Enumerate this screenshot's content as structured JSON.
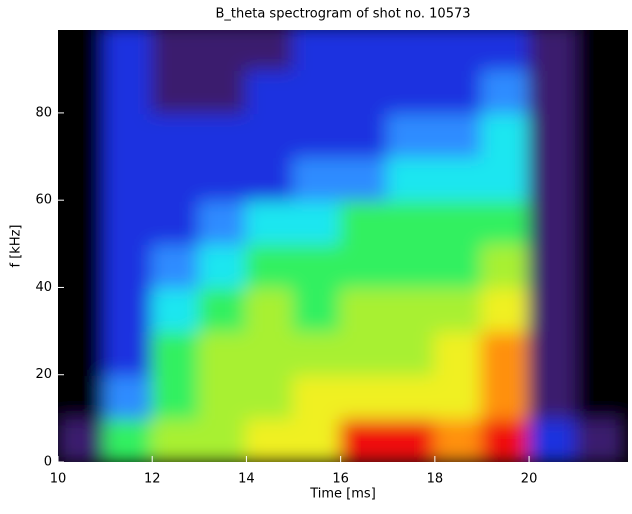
{
  "chart_data": {
    "type": "heatmap",
    "title": "B_theta spectrogram of shot no. 10573",
    "xlabel": "Time [ms]",
    "ylabel": "f [kHz]",
    "x": [
      10.5,
      11.5,
      12.5,
      13.5,
      14.5,
      15.5,
      16.5,
      17.5,
      18.5,
      19.5,
      20.5,
      21.5
    ],
    "y": [
      5,
      15,
      25,
      35,
      45,
      55,
      65,
      75,
      85,
      95
    ],
    "z": [
      [
        1,
        5,
        6,
        6,
        7,
        7,
        9,
        9,
        8,
        9,
        2,
        1
      ],
      [
        0,
        3,
        5,
        6,
        6,
        7,
        7,
        7,
        7,
        8,
        1,
        0
      ],
      [
        0,
        2,
        5,
        6,
        6,
        6,
        6,
        6,
        7,
        8,
        1,
        0
      ],
      [
        0,
        2,
        4,
        5,
        6,
        5,
        6,
        6,
        6,
        7,
        1,
        0
      ],
      [
        0,
        2,
        3,
        4,
        5,
        5,
        5,
        5,
        5,
        6,
        1,
        0
      ],
      [
        0,
        2,
        2,
        3,
        4,
        4,
        5,
        5,
        5,
        5,
        1,
        0
      ],
      [
        0,
        2,
        2,
        2,
        2,
        3,
        3,
        4,
        4,
        4,
        1,
        0
      ],
      [
        0,
        2,
        2,
        2,
        2,
        2,
        2,
        3,
        3,
        4,
        1,
        0
      ],
      [
        0,
        2,
        1,
        1,
        2,
        2,
        2,
        2,
        2,
        3,
        1,
        0
      ],
      [
        0,
        2,
        1,
        1,
        1,
        2,
        2,
        2,
        2,
        2,
        1,
        0
      ]
    ],
    "colors": [
      "#000000",
      "#3a1a6e",
      "#1e30e0",
      "#2f8cff",
      "#1fe6f0",
      "#30f060",
      "#a8f030",
      "#f0f020",
      "#ff9010",
      "#f01010"
    ],
    "xlim": [
      10,
      22.1
    ],
    "ylim": [
      0,
      99
    ],
    "xticks": [
      10,
      12,
      14,
      16,
      18,
      20
    ],
    "yticks": [
      0,
      20,
      40,
      60,
      80
    ]
  }
}
